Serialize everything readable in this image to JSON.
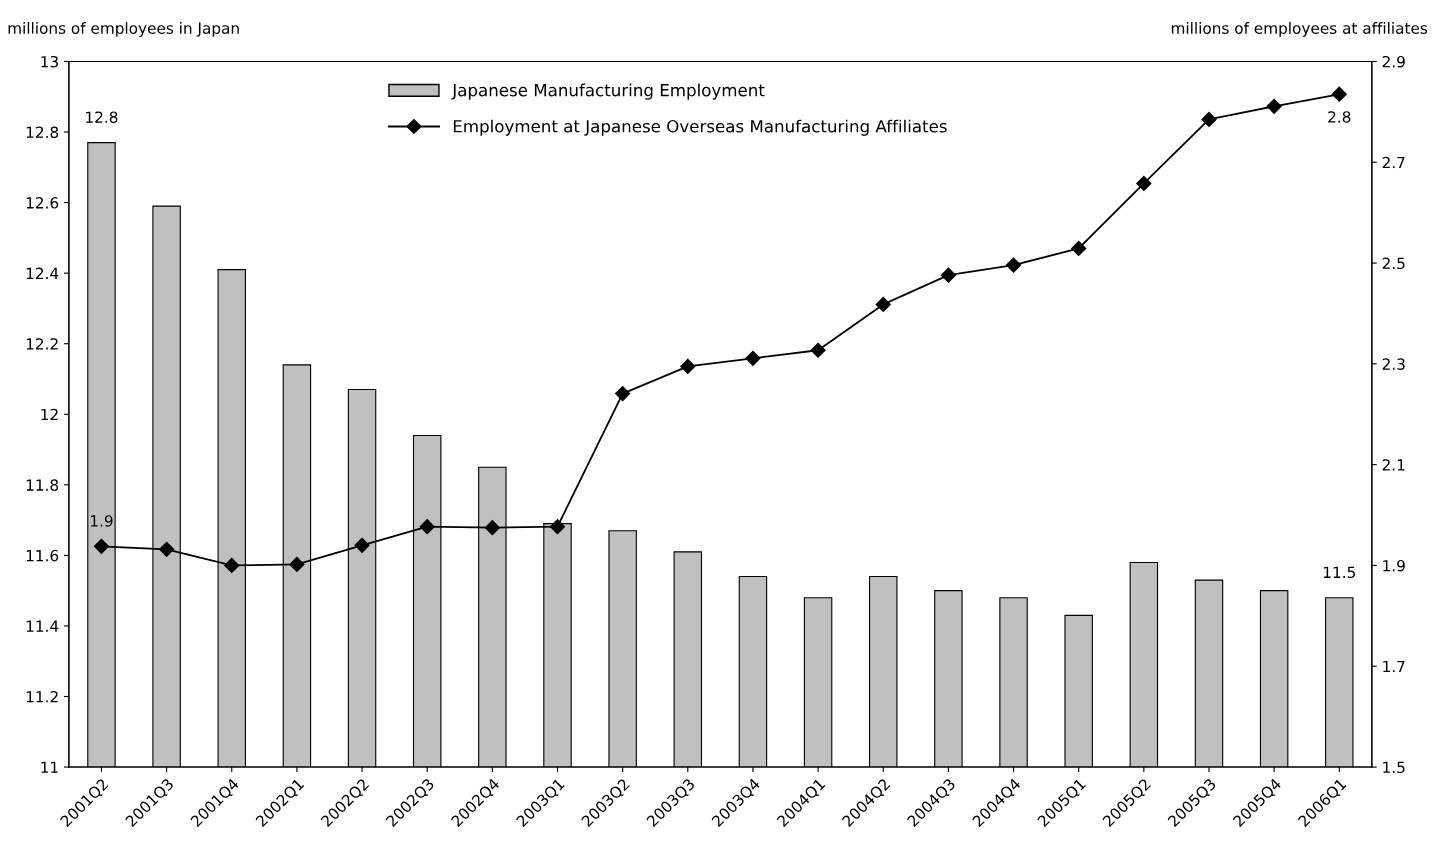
{
  "chart_data": {
    "type": "bar",
    "ylabel": "millions of employees in Japan",
    "y2label": "millions of employees at affiliates",
    "categories": [
      "2001Q2",
      "2001Q3",
      "2001Q4",
      "2002Q1",
      "2002Q2",
      "2002Q3",
      "2002Q4",
      "2003Q1",
      "2003Q2",
      "2003Q3",
      "2003Q4",
      "2004Q1",
      "2004Q2",
      "2004Q3",
      "2004Q4",
      "2005Q1",
      "2005Q2",
      "2005Q3",
      "2005Q4",
      "2006Q1"
    ],
    "series": [
      {
        "name": "Japanese Manufacturing Employment",
        "color": "#c0c0c0",
        "values": [
          12.77,
          12.59,
          12.41,
          12.14,
          12.07,
          11.94,
          11.85,
          11.69,
          11.67,
          11.61,
          11.54,
          11.48,
          11.54,
          11.5,
          11.48,
          11.43,
          11.58,
          11.53,
          11.5,
          11.48
        ],
        "value_labels": [
          "12.8",
          null,
          null,
          null,
          null,
          null,
          null,
          null,
          null,
          null,
          null,
          null,
          null,
          null,
          null,
          null,
          null,
          null,
          null,
          "11.5"
        ]
      },
      {
        "name": "Employment at Japanese Overseas Manufacturing Affiliates",
        "type": "line",
        "axis": "y2",
        "color": "#000000",
        "marker": "diamond",
        "values": [
          1.938,
          1.932,
          1.9,
          1.902,
          1.94,
          1.977,
          1.975,
          1.977,
          2.241,
          2.295,
          2.311,
          2.327,
          2.418,
          2.476,
          2.496,
          2.529,
          2.658,
          2.785,
          2.811,
          2.835
        ],
        "value_labels": [
          "1.9",
          null,
          null,
          null,
          null,
          null,
          null,
          null,
          null,
          null,
          null,
          null,
          null,
          null,
          null,
          null,
          null,
          null,
          null,
          "2.8"
        ]
      }
    ],
    "ylim": [
      11,
      13
    ],
    "yticks": [
      11,
      11.2,
      11.4,
      11.6,
      11.8,
      12,
      12.2,
      12.4,
      12.6,
      12.8,
      13
    ],
    "y2lim": [
      1.5,
      2.9
    ],
    "y2ticks": [
      1.5,
      1.7,
      1.9,
      2.1,
      2.3,
      2.5,
      2.7,
      2.9
    ],
    "legend": "top",
    "grid": false
  }
}
